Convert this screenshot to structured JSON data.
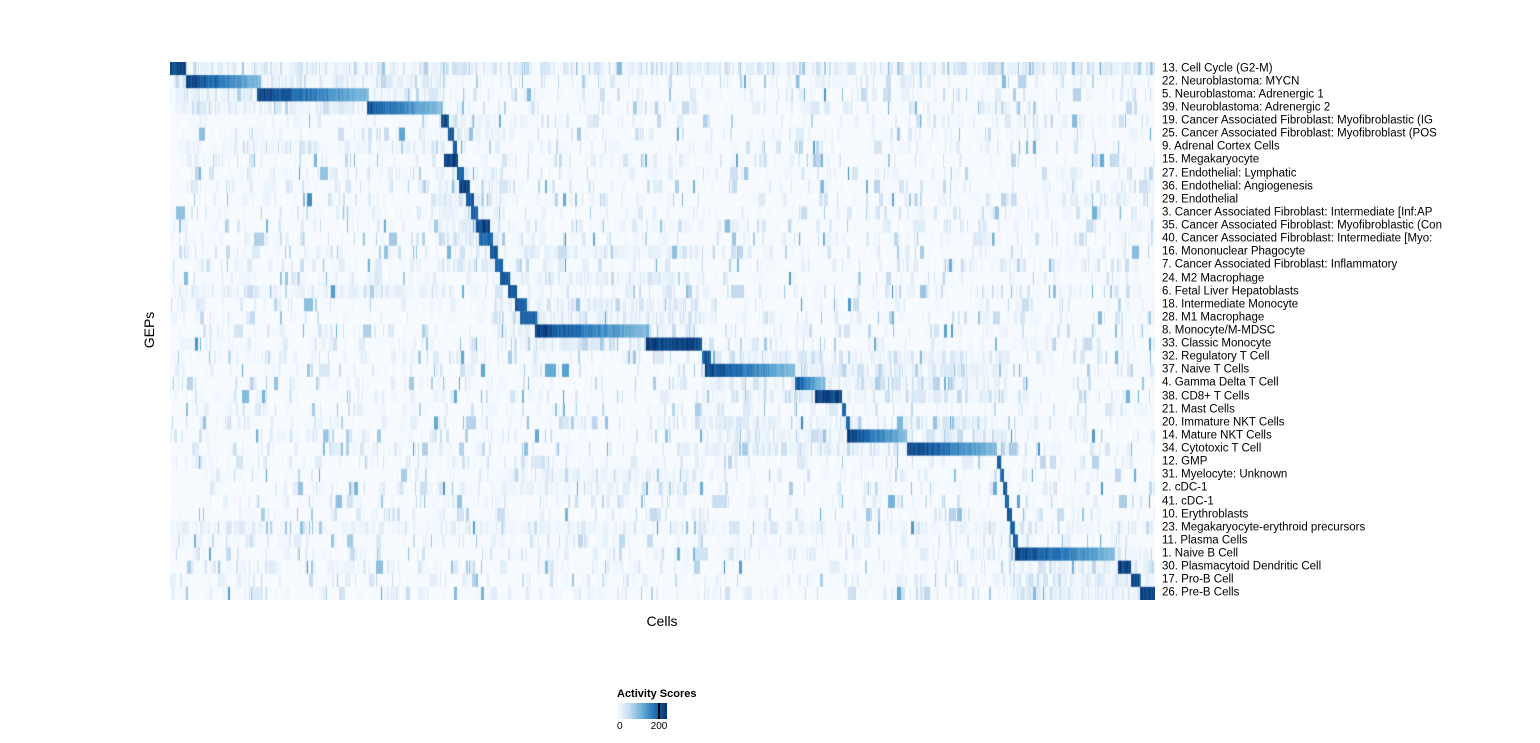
{
  "chart_data": {
    "type": "heatmap",
    "title": "",
    "xlabel": "Cells",
    "ylabel": "GEPs",
    "x_axis": "individual cells ordered by dominant GEP, no tick labels",
    "legend": {
      "title": "Activity Scores",
      "tick_labels": [
        "0",
        "200"
      ],
      "value_range": [
        0,
        200
      ]
    },
    "colormap": {
      "name": "Blues",
      "stops": [
        "#f7fbff",
        "#c6dbef",
        "#6baed6",
        "#2171b5",
        "#08306b"
      ]
    },
    "rows": [
      {
        "label": "13. Cell Cycle (G2-M)",
        "block": [
          0.0,
          0.016
        ],
        "peak": 1.0,
        "fade": false,
        "band": [
          0.0,
          1.0,
          0.42
        ]
      },
      {
        "label": "22. Neuroblastoma: MYCN",
        "block": [
          0.016,
          0.092
        ],
        "peak": 1.0,
        "fade": true,
        "band": [
          0.0,
          0.28,
          0.38
        ]
      },
      {
        "label": "5. Neuroblastoma: Adrenergic 1",
        "block": [
          0.088,
          0.202
        ],
        "peak": 1.0,
        "fade": true,
        "band": [
          0.0,
          0.28,
          0.35
        ]
      },
      {
        "label": "39. Neuroblastoma: Adrenergic 2",
        "block": [
          0.2,
          0.277
        ],
        "peak": 0.92,
        "fade": true,
        "band": [
          0.0,
          0.28,
          0.3
        ]
      },
      {
        "label": "19. Cancer Associated Fibroblast: Myofibroblastic (IG",
        "block": [
          0.275,
          0.283
        ],
        "peak": 0.95,
        "fade": false,
        "band": [
          0.27,
          0.34,
          0.3
        ]
      },
      {
        "label": "25. Cancer Associated Fibroblast: Myofibroblast (POS",
        "block": [
          0.282,
          0.288
        ],
        "peak": 0.9,
        "fade": false,
        "band": [
          0.27,
          0.34,
          0.26
        ]
      },
      {
        "label": "9. Adrenal Cortex Cells",
        "block": [
          0.287,
          0.291
        ],
        "peak": 0.88,
        "fade": false,
        "band": [
          0.0,
          0.28,
          0.2
        ]
      },
      {
        "label": "15. Megakaryocyte",
        "block": [
          0.278,
          0.292
        ],
        "peak": 1.0,
        "fade": false,
        "band": null
      },
      {
        "label": "27. Endothelial: Lymphatic",
        "block": [
          0.291,
          0.298
        ],
        "peak": 0.9,
        "fade": false,
        "band": [
          0.27,
          0.34,
          0.22
        ]
      },
      {
        "label": "36. Endothelial: Angiogenesis",
        "block": [
          0.293,
          0.304
        ],
        "peak": 1.0,
        "fade": false,
        "band": [
          0.27,
          0.34,
          0.22
        ]
      },
      {
        "label": "29. Endothelial",
        "block": [
          0.3,
          0.308
        ],
        "peak": 0.9,
        "fade": false,
        "band": [
          0.27,
          0.34,
          0.22
        ]
      },
      {
        "label": "3. Cancer Associated Fibroblast: Intermediate [Inf:AP",
        "block": [
          0.305,
          0.313
        ],
        "peak": 0.86,
        "fade": false,
        "band": [
          0.27,
          0.34,
          0.28
        ]
      },
      {
        "label": "35. Cancer Associated Fibroblast: Myofibroblastic (Con",
        "block": [
          0.31,
          0.325
        ],
        "peak": 1.0,
        "fade": false,
        "band": [
          0.27,
          0.34,
          0.28
        ]
      },
      {
        "label": "40. Cancer Associated Fibroblast: Intermediate [Myo:",
        "block": [
          0.314,
          0.328
        ],
        "peak": 0.82,
        "fade": false,
        "band": [
          0.27,
          0.34,
          0.26
        ]
      },
      {
        "label": "16. Mononuclear Phagocyte",
        "block": [
          0.325,
          0.333
        ],
        "peak": 0.9,
        "fade": false,
        "band": [
          0.33,
          0.54,
          0.25
        ]
      },
      {
        "label": "7. Cancer Associated Fibroblast: Inflammatory",
        "block": [
          0.33,
          0.338
        ],
        "peak": 0.86,
        "fade": false,
        "band": [
          0.27,
          0.34,
          0.3
        ]
      },
      {
        "label": "24. M2 Macrophage",
        "block": [
          0.335,
          0.345
        ],
        "peak": 0.9,
        "fade": false,
        "band": [
          0.33,
          0.54,
          0.32
        ]
      },
      {
        "label": "6. Fetal Liver Hepatoblasts",
        "block": [
          0.343,
          0.352
        ],
        "peak": 0.92,
        "fade": false,
        "band": [
          0.0,
          0.28,
          0.22
        ]
      },
      {
        "label": "18. Intermediate Monocyte",
        "block": [
          0.35,
          0.362
        ],
        "peak": 0.9,
        "fade": false,
        "band": [
          0.33,
          0.54,
          0.34
        ]
      },
      {
        "label": "28. M1 Macrophage",
        "block": [
          0.355,
          0.372
        ],
        "peak": 0.86,
        "fade": false,
        "band": [
          0.33,
          0.54,
          0.38
        ]
      },
      {
        "label": "8. Monocyte/M-MDSC",
        "block": [
          0.37,
          0.483
        ],
        "peak": 1.0,
        "fade": true,
        "band": [
          0.33,
          0.54,
          0.42
        ]
      },
      {
        "label": "33. Classic Monocyte",
        "block": [
          0.483,
          0.54
        ],
        "peak": 1.0,
        "fade": false,
        "band": [
          0.33,
          0.54,
          0.38
        ]
      },
      {
        "label": "32. Regulatory T Cell",
        "block": [
          0.54,
          0.549
        ],
        "peak": 0.9,
        "fade": false,
        "band": [
          0.54,
          0.85,
          0.36
        ]
      },
      {
        "label": "37. Naive T Cells",
        "block": [
          0.543,
          0.635
        ],
        "peak": 1.0,
        "fade": true,
        "band": [
          0.54,
          0.85,
          0.42
        ]
      },
      {
        "label": "4. Gamma Delta T Cell",
        "block": [
          0.635,
          0.663
        ],
        "peak": 0.92,
        "fade": true,
        "band": [
          0.54,
          0.85,
          0.38
        ]
      },
      {
        "label": "38. CD8+ T Cells",
        "block": [
          0.655,
          0.682
        ],
        "peak": 1.0,
        "fade": false,
        "band": [
          0.54,
          0.85,
          0.38
        ]
      },
      {
        "label": "21. Mast Cells",
        "block": [
          0.682,
          0.686
        ],
        "peak": 0.9,
        "fade": false,
        "band": null
      },
      {
        "label": "20. Immature NKT Cells",
        "block": [
          0.686,
          0.691
        ],
        "peak": 0.86,
        "fade": false,
        "band": [
          0.54,
          0.85,
          0.36
        ]
      },
      {
        "label": "14. Mature NKT Cells",
        "block": [
          0.688,
          0.748
        ],
        "peak": 1.0,
        "fade": true,
        "band": [
          0.54,
          0.85,
          0.42
        ]
      },
      {
        "label": "34. Cytotoxic T Cell",
        "block": [
          0.748,
          0.84
        ],
        "peak": 1.0,
        "fade": true,
        "band": [
          0.54,
          0.85,
          0.42
        ]
      },
      {
        "label": "12. GMP",
        "block": [
          0.84,
          0.844
        ],
        "peak": 0.9,
        "fade": false,
        "band": null
      },
      {
        "label": "31. Myelocyte: Unknown",
        "block": [
          0.843,
          0.847
        ],
        "peak": 0.86,
        "fade": false,
        "band": [
          0.33,
          0.54,
          0.22
        ]
      },
      {
        "label": "2. cDC-1",
        "block": [
          0.846,
          0.85
        ],
        "peak": 0.9,
        "fade": false,
        "band": [
          0.33,
          0.54,
          0.22
        ]
      },
      {
        "label": "41. cDC-1",
        "block": [
          0.848,
          0.852
        ],
        "peak": 0.86,
        "fade": false,
        "band": null
      },
      {
        "label": "10. Erythroblasts",
        "block": [
          0.85,
          0.855
        ],
        "peak": 0.92,
        "fade": false,
        "band": null
      },
      {
        "label": "23. Megakaryocyte-erythroid precursors",
        "block": [
          0.853,
          0.858
        ],
        "peak": 0.86,
        "fade": false,
        "band": [
          0.0,
          1.0,
          0.16
        ]
      },
      {
        "label": "11. Plasma Cells",
        "block": [
          0.856,
          0.861
        ],
        "peak": 0.9,
        "fade": false,
        "band": null
      },
      {
        "label": "1. Naive B Cell",
        "block": [
          0.858,
          0.96
        ],
        "peak": 1.0,
        "fade": true,
        "band": [
          0.85,
          1.0,
          0.38
        ]
      },
      {
        "label": "30. Plasmacytoid Dendritic Cell",
        "block": [
          0.963,
          0.976
        ],
        "peak": 1.0,
        "fade": false,
        "band": [
          0.85,
          1.0,
          0.32
        ]
      },
      {
        "label": "17. Pro-B Cell",
        "block": [
          0.976,
          0.985
        ],
        "peak": 0.95,
        "fade": false,
        "band": [
          0.85,
          1.0,
          0.32
        ]
      },
      {
        "label": "26. Pre-B Cells",
        "block": [
          0.985,
          1.0
        ],
        "peak": 1.0,
        "fade": false,
        "band": [
          0.85,
          1.0,
          0.32
        ]
      }
    ]
  }
}
